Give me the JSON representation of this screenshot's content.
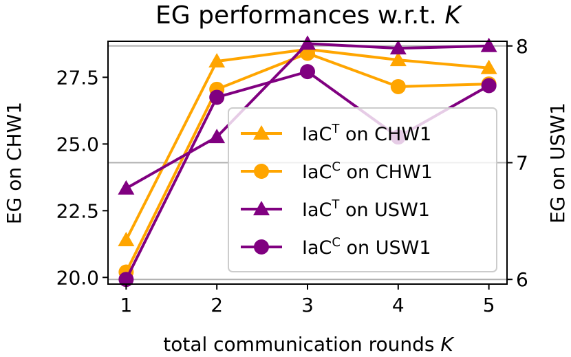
{
  "chart_data": {
    "type": "line",
    "title": "EG performances w.r.t. K",
    "title_main": "EG performances w.r.t. ",
    "title_var": "K",
    "xlabel": "total communication rounds K",
    "xlabel_main": "total communication rounds ",
    "xlabel_var": "K",
    "ylabel_left": "EG on CHW1",
    "ylabel_right": "EG on USW1",
    "x": [
      1,
      2,
      3,
      4,
      5
    ],
    "x_ticks": [
      "1",
      "2",
      "3",
      "4",
      "5"
    ],
    "xlim": [
      0.8,
      5.2
    ],
    "y_left_ticks": [
      "20.0",
      "22.5",
      "25.0",
      "27.5"
    ],
    "y_left_lim": [
      19.75,
      28.85
    ],
    "y_right_ticks": [
      "6",
      "7",
      "8"
    ],
    "y_right_lim": [
      5.96,
      8.04
    ],
    "grid": "horizontal lines at right-axis ticks",
    "legend_position": "center-right",
    "series": [
      {
        "label_base": "IaC",
        "label_sup": "T",
        "label_rest": " on CHW1",
        "axis": "left",
        "marker": "triangle",
        "color": "#FFA500",
        "values": [
          21.4,
          28.1,
          28.55,
          28.15,
          27.85
        ]
      },
      {
        "label_base": "IaC",
        "label_sup": "C",
        "label_rest": " on CHW1",
        "axis": "left",
        "marker": "circle",
        "color": "#FFA500",
        "values": [
          20.2,
          27.05,
          28.4,
          27.15,
          27.25
        ]
      },
      {
        "label_base": "IaC",
        "label_sup": "T",
        "label_rest": " on USW1",
        "axis": "right",
        "marker": "triangle",
        "color": "#800080",
        "values": [
          6.78,
          7.22,
          8.02,
          7.98,
          8.0
        ]
      },
      {
        "label_base": "IaC",
        "label_sup": "C",
        "label_rest": " on USW1",
        "axis": "right",
        "marker": "circle",
        "color": "#800080",
        "values": [
          6.0,
          7.56,
          7.78,
          7.22,
          7.66
        ]
      }
    ]
  }
}
